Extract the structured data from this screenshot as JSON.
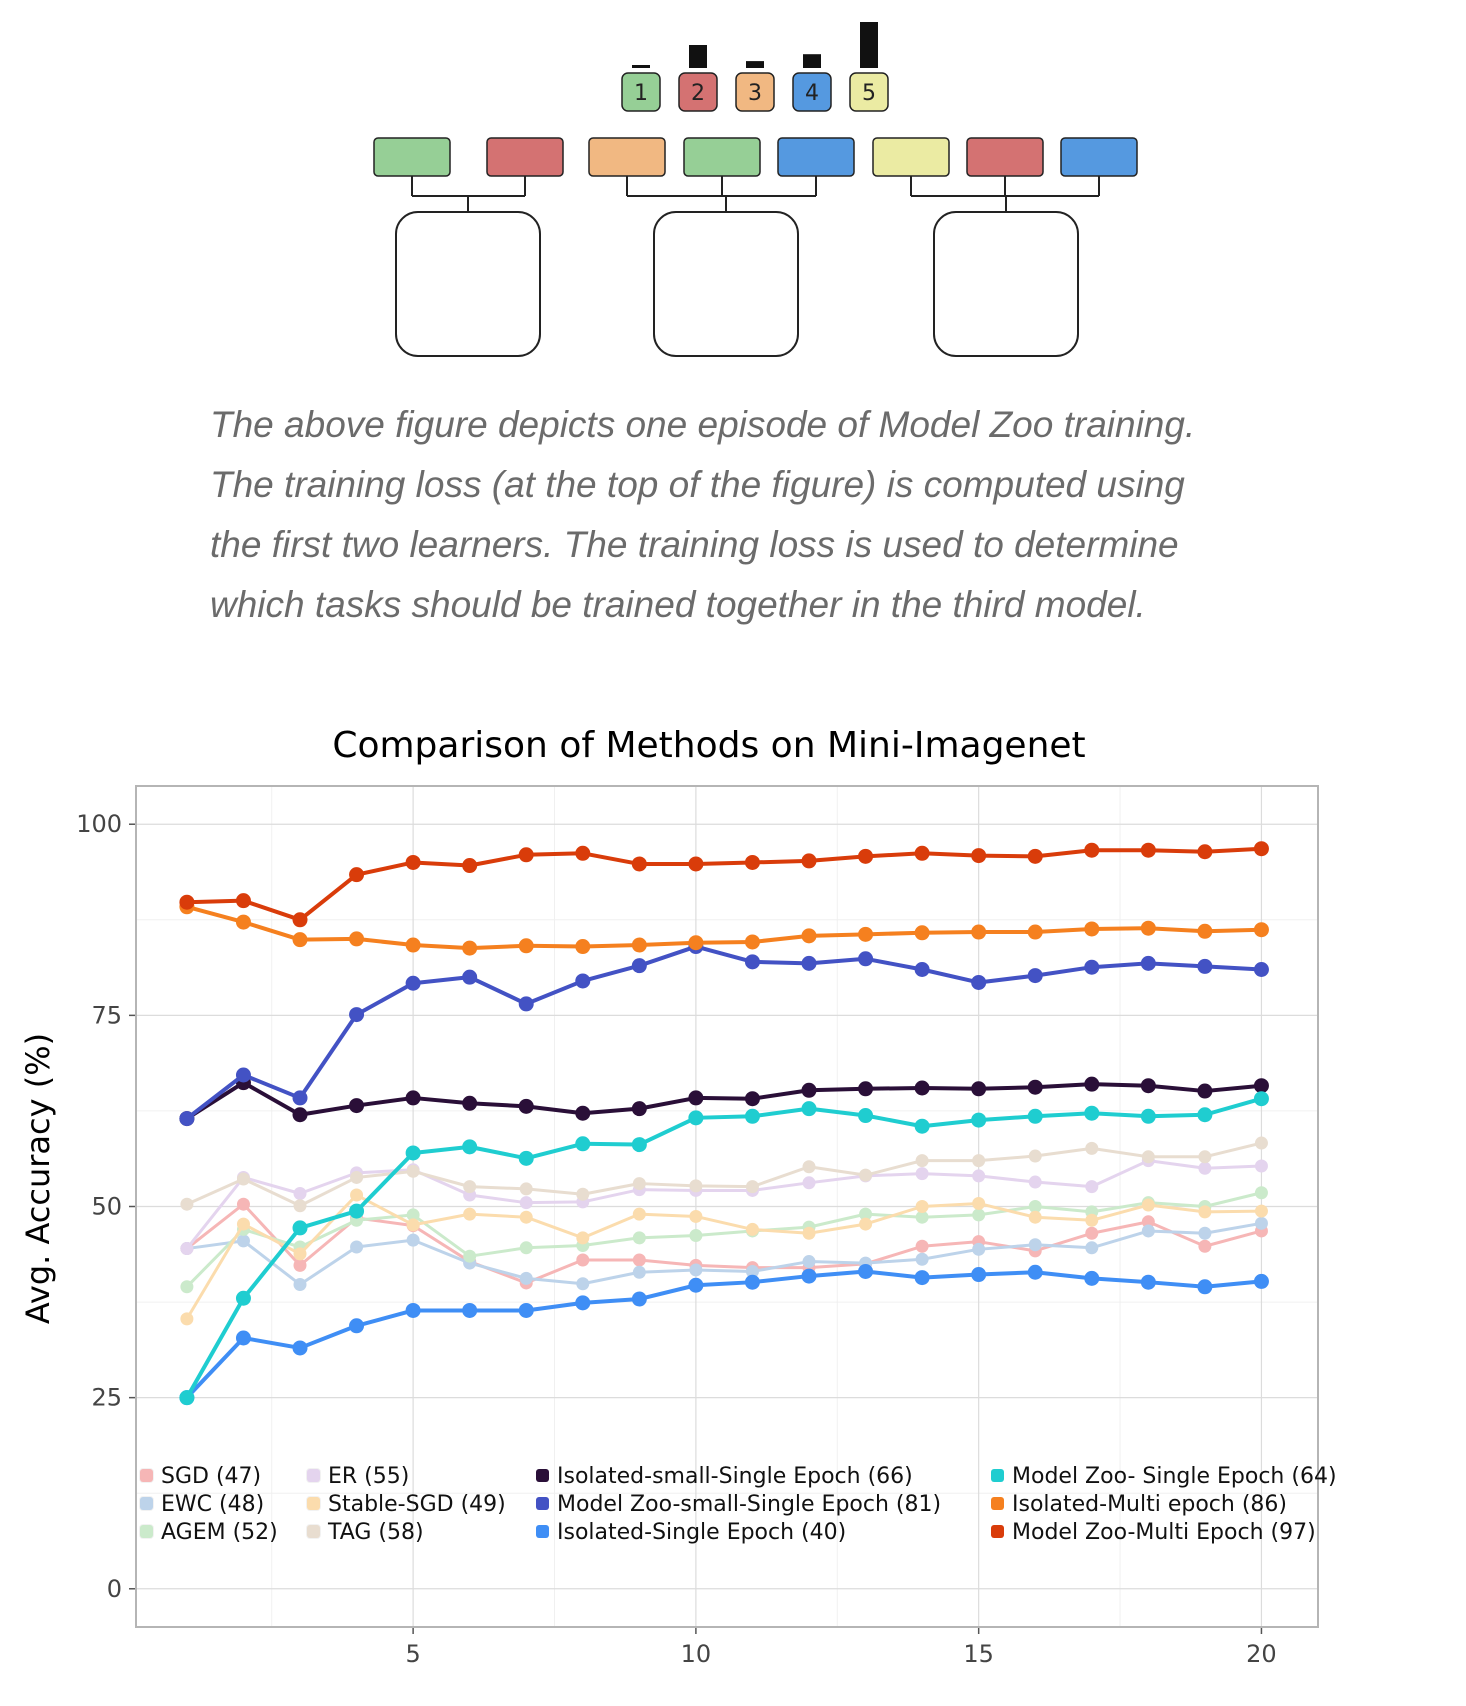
{
  "diagram": {
    "task_badges": [
      {
        "label": "1",
        "color": "#96cf96",
        "loss": 0.05
      },
      {
        "label": "2",
        "color": "#d47272",
        "loss": 0.5
      },
      {
        "label": "3",
        "color": "#f1b882",
        "loss": 0.15
      },
      {
        "label": "4",
        "color": "#5599e0",
        "loss": 0.3
      },
      {
        "label": "5",
        "color": "#ebeba3",
        "loss": 1.0
      }
    ],
    "models": [
      {
        "tasks": [
          "#96cf96",
          "#d47272"
        ]
      },
      {
        "tasks": [
          "#f1b882",
          "#96cf96",
          "#5599e0"
        ]
      },
      {
        "tasks": [
          "#ebeba3",
          "#d47272",
          "#5599e0"
        ]
      }
    ]
  },
  "caption": {
    "lines": [
      "The above figure depicts one episode of Model Zoo training.",
      "The training loss (at the top of the figure) is computed using",
      "the first two learners. The training loss is used to determine",
      "which tasks should be trained together in the third model."
    ]
  },
  "chart_data": {
    "type": "line",
    "title": "Comparison of Methods on Mini-Imagenet",
    "xlabel": "",
    "ylabel": "Avg. Accuracy (%)",
    "xlim": [
      0.1,
      21
    ],
    "ylim": [
      -5,
      105
    ],
    "xticks": [
      5,
      10,
      15,
      20
    ],
    "yticks": [
      0,
      25,
      50,
      75,
      100
    ],
    "grid": true,
    "legend_placement": "bottom-left",
    "x": [
      1,
      2,
      3,
      4,
      5,
      6,
      7,
      8,
      9,
      10,
      11,
      12,
      13,
      14,
      15,
      16,
      17,
      18,
      19,
      20
    ],
    "series": [
      {
        "name": "SGD (47)",
        "color": "#f6b6b6",
        "faded": true,
        "values": [
          44.5,
          50.3,
          42.3,
          48.5,
          47.5,
          42.8,
          40.0,
          43.0,
          43.0,
          42.3,
          42.0,
          42.0,
          42.5,
          44.8,
          45.4,
          44.2,
          46.5,
          48.0,
          44.8,
          46.8
        ]
      },
      {
        "name": "EWC (48)",
        "color": "#bdd3ea",
        "faded": true,
        "values": [
          44.5,
          45.5,
          39.8,
          44.7,
          45.6,
          42.6,
          40.6,
          39.9,
          41.4,
          41.7,
          41.5,
          42.8,
          42.6,
          43.1,
          44.4,
          45.0,
          44.6,
          46.8,
          46.5,
          47.8
        ]
      },
      {
        "name": "AGEM (52)",
        "color": "#cbeacb",
        "faded": true,
        "values": [
          39.5,
          47.0,
          44.7,
          48.2,
          48.9,
          43.5,
          44.6,
          44.9,
          45.9,
          46.2,
          46.8,
          47.3,
          49.0,
          48.6,
          48.9,
          50.0,
          49.3,
          50.5,
          50.0,
          51.8
        ]
      },
      {
        "name": "ER (55)",
        "color": "#e4d4ee",
        "faded": true,
        "values": [
          44.5,
          53.8,
          51.7,
          54.4,
          54.8,
          51.5,
          50.5,
          50.6,
          52.2,
          52.1,
          52.1,
          53.1,
          54.0,
          54.3,
          54.0,
          53.2,
          52.6,
          56.0,
          55.0,
          55.3
        ]
      },
      {
        "name": "Stable-SGD (49)",
        "color": "#fbdcad",
        "faded": true,
        "values": [
          35.3,
          47.7,
          43.8,
          51.5,
          47.6,
          49.0,
          48.6,
          45.9,
          49.0,
          48.7,
          47.0,
          46.5,
          47.7,
          50.0,
          50.4,
          48.6,
          48.2,
          50.2,
          49.3,
          49.4
        ]
      },
      {
        "name": "TAG (58)",
        "color": "#e8ddd0",
        "faded": true,
        "values": [
          50.3,
          53.6,
          50.1,
          53.8,
          54.6,
          52.6,
          52.3,
          51.6,
          53.0,
          52.7,
          52.6,
          55.2,
          54.1,
          56.0,
          56.0,
          56.6,
          57.6,
          56.5,
          56.5,
          58.3
        ]
      },
      {
        "name": "Isolated-small-Single Epoch (66)",
        "color": "#2a0f38",
        "faded": false,
        "values": [
          61.5,
          66.2,
          62.0,
          63.2,
          64.2,
          63.5,
          63.1,
          62.2,
          62.8,
          64.2,
          64.1,
          65.2,
          65.4,
          65.5,
          65.4,
          65.6,
          66.0,
          65.8,
          65.1,
          65.8
        ]
      },
      {
        "name": "Model Zoo-small-Single Epoch (81)",
        "color": "#4352c4",
        "faded": false,
        "values": [
          61.5,
          67.2,
          64.2,
          75.1,
          79.2,
          80.0,
          76.5,
          79.5,
          81.5,
          84.0,
          82.0,
          81.8,
          82.4,
          81.0,
          79.3,
          80.2,
          81.3,
          81.8,
          81.4,
          81.0
        ]
      },
      {
        "name": "Isolated-Single Epoch (40)",
        "color": "#3f8ef5",
        "faded": false,
        "values": [
          25.0,
          32.8,
          31.5,
          34.4,
          36.4,
          36.4,
          36.4,
          37.4,
          37.9,
          39.7,
          40.1,
          40.9,
          41.5,
          40.7,
          41.1,
          41.4,
          40.6,
          40.1,
          39.5,
          40.2
        ]
      },
      {
        "name": "Model Zoo- Single Epoch (64)",
        "color": "#1fcdd0",
        "faded": false,
        "values": [
          25.0,
          38.0,
          47.2,
          49.4,
          57.0,
          57.8,
          56.3,
          58.2,
          58.1,
          61.6,
          61.8,
          62.8,
          61.9,
          60.5,
          61.3,
          61.8,
          62.2,
          61.8,
          62.0,
          64.1
        ]
      },
      {
        "name": "Isolated-Multi epoch (86)",
        "color": "#f5801f",
        "faded": false,
        "values": [
          89.2,
          87.2,
          84.9,
          85.0,
          84.2,
          83.8,
          84.1,
          84.0,
          84.2,
          84.5,
          84.6,
          85.4,
          85.6,
          85.8,
          85.9,
          85.9,
          86.3,
          86.4,
          86.0,
          86.2
        ]
      },
      {
        "name": "Model Zoo-Multi Epoch (97)",
        "color": "#d93c0a",
        "faded": false,
        "values": [
          89.8,
          90.0,
          87.5,
          93.4,
          95.0,
          94.6,
          96.0,
          96.2,
          94.8,
          94.8,
          95.0,
          95.2,
          95.8,
          96.2,
          95.9,
          95.8,
          96.6,
          96.6,
          96.4,
          96.8
        ]
      }
    ]
  }
}
